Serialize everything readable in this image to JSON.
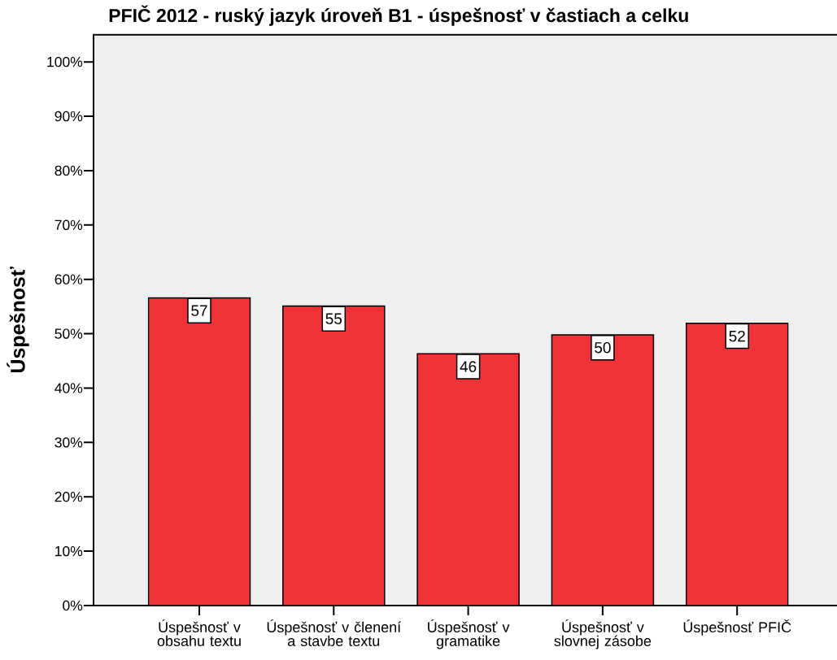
{
  "chart_data": {
    "type": "bar",
    "title": "PFIČ 2012 - ruský jazyk úroveň B1 - úspešnosť v častiach a celku",
    "ylabel": "Úspešnosť",
    "categories": [
      "Úspešnosť v obsahu textu",
      "Úspešnosť v členení a stavbe textu",
      "Úspešnosť v gramatike",
      "Úspešnosť v slovnej zásobe",
      "Úspešnosť PFIČ"
    ],
    "values": [
      56.6,
      55.1,
      46.3,
      49.8,
      51.9
    ],
    "value_labels": [
      "57",
      "55",
      "46",
      "50",
      "52"
    ],
    "color": "#f03239",
    "ylim": [
      0,
      105
    ],
    "yticks": [
      {
        "value": 0,
        "label": "0%"
      },
      {
        "value": 10,
        "label": "10%"
      },
      {
        "value": 20,
        "label": "20%"
      },
      {
        "value": 30,
        "label": "30%"
      },
      {
        "value": 40,
        "label": "40%"
      },
      {
        "value": 50,
        "label": "50%"
      },
      {
        "value": 60,
        "label": "60%"
      },
      {
        "value": 70,
        "label": "70%"
      },
      {
        "value": 80,
        "label": "80%"
      },
      {
        "value": 90,
        "label": "90%"
      },
      {
        "value": 100,
        "label": "100%"
      }
    ]
  }
}
